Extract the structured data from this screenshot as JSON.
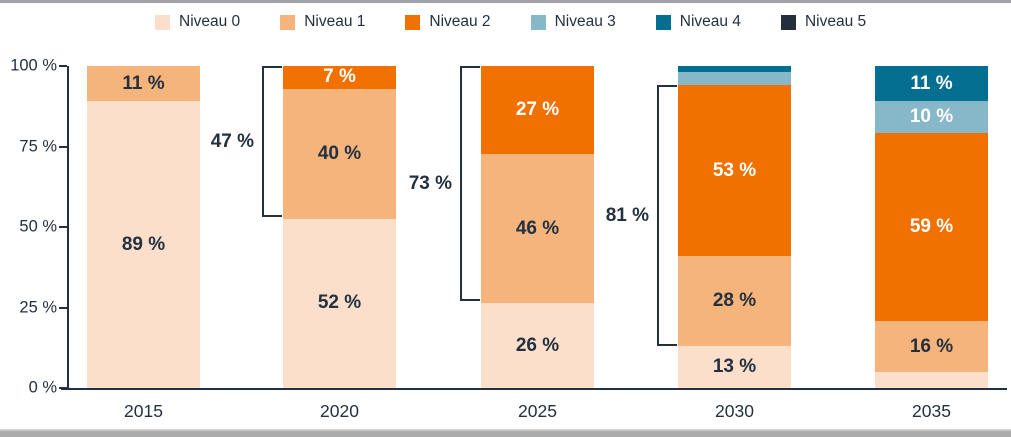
{
  "chart_data": {
    "type": "bar",
    "stacked": true,
    "orientation": "vertical",
    "categories": [
      "2015",
      "2020",
      "2025",
      "2030",
      "2035"
    ],
    "series": [
      {
        "name": "Niveau 0",
        "color": "#fbdfca",
        "label_color": "#233040",
        "values": [
          89,
          52,
          26,
          13,
          5
        ],
        "show_label": [
          true,
          true,
          true,
          true,
          false
        ]
      },
      {
        "name": "Niveau 1",
        "color": "#f5b47c",
        "label_color": "#233040",
        "values": [
          11,
          40,
          46,
          28,
          16
        ],
        "show_label": [
          true,
          true,
          true,
          true,
          true
        ]
      },
      {
        "name": "Niveau 2",
        "color": "#f07100",
        "label_color": "#ffffff",
        "values": [
          0,
          7,
          27,
          53,
          59
        ],
        "show_label": [
          false,
          true,
          true,
          true,
          true
        ]
      },
      {
        "name": "Niveau 3",
        "color": "#87b8ca",
        "label_color": "#ffffff",
        "values": [
          0,
          0,
          0,
          4,
          10
        ],
        "show_label": [
          false,
          false,
          false,
          false,
          true
        ]
      },
      {
        "name": "Niveau 4",
        "color": "#046f90",
        "label_color": "#ffffff",
        "values": [
          0,
          0,
          0,
          2,
          11
        ],
        "show_label": [
          false,
          false,
          false,
          false,
          true
        ]
      },
      {
        "name": "Niveau 5",
        "color": "#242e3c",
        "label_color": "#ffffff",
        "values": [
          0,
          0,
          0,
          0,
          0
        ],
        "show_label": [
          false,
          false,
          false,
          false,
          false
        ]
      }
    ],
    "value_suffix": " %",
    "y_axis": {
      "min": 0,
      "max": 100,
      "ticks": [
        {
          "label": "100 %",
          "value": 100
        },
        {
          "label": "75 %",
          "value": 75
        },
        {
          "label": "50 %",
          "value": 50
        },
        {
          "label": "25 %",
          "value": 25
        },
        {
          "label": "0 %",
          "value": 0
        }
      ]
    },
    "annotations": [
      {
        "label": "47 %",
        "category": "2020",
        "from": 53,
        "to": 100
      },
      {
        "label": "73 %",
        "category": "2025",
        "from": 27,
        "to": 100
      },
      {
        "label": "81 %",
        "category": "2030",
        "from": 13,
        "to": 94
      }
    ],
    "legend_position": "top",
    "grid": false
  },
  "colors": {
    "axis": "#233040",
    "text_dark": "#233040",
    "frame_gray": "#a2a2a6",
    "background": "#ffffff"
  }
}
